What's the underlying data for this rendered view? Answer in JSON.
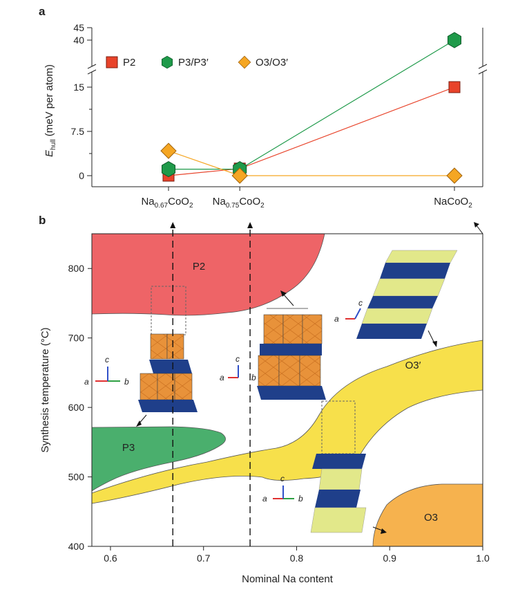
{
  "chart_data": [
    {
      "panel": "a",
      "type": "line",
      "title": "",
      "ylabel_main": "E",
      "ylabel_sub": "hull",
      "ylabel_rest": " (meV per atom)",
      "y_ticks": [
        "0",
        "7.5",
        "15",
        "40",
        "45"
      ],
      "ylim_lower": [
        0,
        17
      ],
      "ylim_upper": [
        39,
        45
      ],
      "categories": [
        {
          "id": "na067",
          "base": "Na",
          "sub1": "0.67",
          "mid": "CoO",
          "sub2": "2",
          "x": 0.667
        },
        {
          "id": "na075",
          "base": "Na",
          "sub1": "0.75",
          "mid": "CoO",
          "sub2": "2",
          "x": 0.75
        },
        {
          "id": "naco",
          "base": "NaCoO",
          "sub1": "",
          "mid": "",
          "sub2": "2",
          "x": 1.0
        }
      ],
      "series": [
        {
          "name": "P2",
          "marker": "square",
          "color": "#e8432a",
          "values": [
            0,
            1.2,
            15
          ]
        },
        {
          "name": "P3/P3′",
          "marker": "hexagon",
          "color": "#1f9a4a",
          "values": [
            1.1,
            1.1,
            40
          ]
        },
        {
          "name": "O3/O3′",
          "marker": "diamond",
          "color": "#f5a623",
          "values": [
            4.2,
            0,
            0
          ]
        }
      ]
    },
    {
      "panel": "b",
      "type": "area",
      "xlabel": "Nominal Na content",
      "ylabel": "Synthesis temperature (°C)",
      "xlim": [
        0.58,
        1.0
      ],
      "ylim": [
        400,
        850
      ],
      "x_ticks": [
        "0.6",
        "0.7",
        "0.8",
        "0.9",
        "1.0"
      ],
      "y_ticks": [
        "400",
        "500",
        "600",
        "700",
        "800"
      ],
      "regions": [
        {
          "name": "P2",
          "color": "#ee6467"
        },
        {
          "name": "P3",
          "color": "#4aaf6d"
        },
        {
          "name": "O3′",
          "color": "#f7e04b"
        },
        {
          "name": "O3",
          "color": "#f6b24e"
        }
      ],
      "vertical_lines_x": [
        0.667,
        0.75
      ],
      "axis_labels_small": {
        "a": "a",
        "b": "b",
        "c": "c"
      }
    }
  ]
}
